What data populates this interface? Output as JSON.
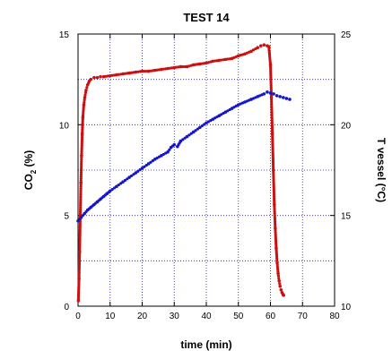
{
  "chart_data": {
    "type": "scatter",
    "title": "TEST 14",
    "xlabel": "time (min)",
    "ylabel_left_main": "CO",
    "ylabel_left_sub": "2",
    "ylabel_left_unit": " (%)",
    "ylabel_right": "T vessel (°C)",
    "xlim": [
      0,
      80
    ],
    "ylim_left": [
      0,
      15
    ],
    "ylim_right": [
      10,
      25
    ],
    "x_ticks": [
      "0",
      "10",
      "20",
      "30",
      "40",
      "50",
      "60",
      "70",
      "80"
    ],
    "y_left_ticks": [
      "0",
      "5",
      "10",
      "15"
    ],
    "y_right_ticks": [
      "10",
      "15",
      "20",
      "25"
    ],
    "grid": true,
    "series": [
      {
        "axis": "left",
        "color": "#cc1010",
        "x": [
          0.1,
          0.3,
          0.5,
          0.7,
          0.9,
          1.1,
          1.3,
          1.5,
          1.8,
          2.1,
          2.5,
          3.0,
          3.5,
          4.0,
          5.0,
          6.0,
          7.0,
          8.0,
          10.0,
          12.0,
          14.0,
          16.0,
          18.0,
          20.0,
          22.0,
          24.0,
          26.0,
          28.0,
          30.0,
          32.0,
          34.0,
          36.0,
          38.0,
          40.0,
          42.0,
          44.0,
          46.0,
          48.0,
          50.0,
          52.0,
          54.0,
          56.0,
          57.0,
          58.0,
          59.0,
          59.5,
          60.0,
          60.3,
          60.6,
          60.9,
          61.2,
          61.5,
          61.8,
          62.1,
          62.4,
          62.7,
          63.0,
          63.3,
          63.6,
          63.9,
          64.1
        ],
        "y": [
          0.3,
          1.5,
          3.0,
          5.0,
          6.8,
          8.3,
          9.5,
          10.4,
          11.1,
          11.5,
          11.9,
          12.2,
          12.4,
          12.5,
          12.6,
          12.6,
          12.65,
          12.65,
          12.7,
          12.75,
          12.8,
          12.85,
          12.9,
          12.95,
          12.95,
          13.0,
          13.05,
          13.1,
          13.15,
          13.2,
          13.2,
          13.3,
          13.35,
          13.4,
          13.5,
          13.55,
          13.6,
          13.65,
          13.8,
          13.9,
          14.05,
          14.25,
          14.35,
          14.4,
          14.35,
          14.3,
          13.3,
          11.5,
          9.5,
          7.5,
          5.6,
          4.3,
          3.2,
          2.4,
          1.8,
          1.4,
          1.1,
          0.9,
          0.75,
          0.65,
          0.6
        ]
      },
      {
        "axis": "right",
        "color": "#1414cc",
        "x": [
          0,
          1,
          2,
          3,
          4,
          5,
          6,
          7,
          8,
          9,
          10,
          12,
          14,
          16,
          18,
          20,
          22,
          24,
          26,
          28,
          29,
          30,
          31,
          32,
          34,
          36,
          38,
          40,
          42,
          44,
          46,
          48,
          50,
          52,
          54,
          56,
          58,
          59,
          60,
          61,
          62,
          63,
          64,
          65,
          66
        ],
        "y": [
          14.7,
          14.9,
          15.1,
          15.3,
          15.45,
          15.6,
          15.75,
          15.9,
          16.05,
          16.2,
          16.35,
          16.6,
          16.85,
          17.1,
          17.35,
          17.6,
          17.85,
          18.1,
          18.3,
          18.5,
          18.75,
          18.9,
          18.8,
          19.1,
          19.35,
          19.6,
          19.85,
          20.1,
          20.3,
          20.5,
          20.7,
          20.9,
          21.1,
          21.25,
          21.4,
          21.55,
          21.7,
          21.8,
          21.75,
          21.7,
          21.6,
          21.55,
          21.5,
          21.45,
          21.4
        ]
      }
    ]
  }
}
